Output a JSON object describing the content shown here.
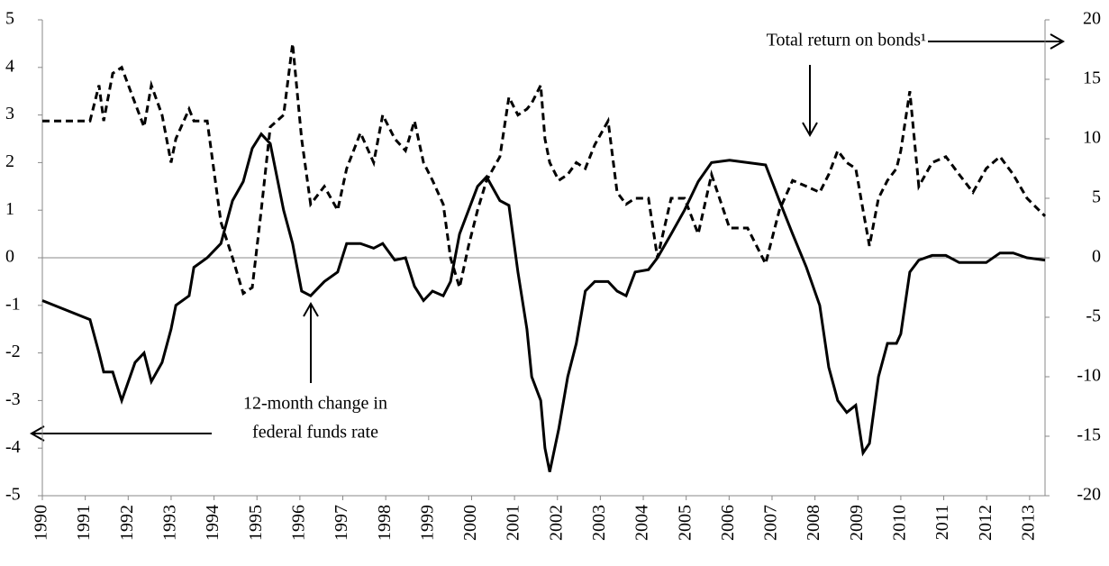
{
  "chart_data": {
    "type": "line",
    "x": [
      1990.0,
      1991.11,
      1991.32,
      1991.43,
      1991.64,
      1991.85,
      1992.16,
      1992.37,
      1992.54,
      1992.79,
      1993.0,
      1993.11,
      1993.42,
      1993.53,
      1993.84,
      1994.16,
      1994.43,
      1994.68,
      1994.89,
      1995.1,
      1995.31,
      1995.62,
      1995.83,
      1996.04,
      1996.25,
      1996.57,
      1996.88,
      1997.09,
      1997.41,
      1997.72,
      1997.93,
      1998.21,
      1998.46,
      1998.67,
      1998.88,
      1999.09,
      1999.34,
      1999.51,
      1999.72,
      1999.93,
      2000.14,
      2000.35,
      2000.66,
      2000.87,
      2001.08,
      2001.29,
      2001.4,
      2001.61,
      2001.71,
      2001.82,
      2002.03,
      2002.24,
      2002.44,
      2002.65,
      2002.87,
      2003.18,
      2003.39,
      2003.6,
      2003.81,
      2004.12,
      2004.33,
      2004.65,
      2004.96,
      2005.28,
      2005.59,
      2006.01,
      2006.43,
      2006.85,
      2007.17,
      2007.48,
      2007.8,
      2008.11,
      2008.32,
      2008.53,
      2008.74,
      2008.95,
      2009.12,
      2009.27,
      2009.48,
      2009.69,
      2009.9,
      2010.0,
      2010.21,
      2010.42,
      2010.73,
      2011.05,
      2011.36,
      2011.68,
      2011.99,
      2012.31,
      2012.62,
      2012.94,
      2013.36
    ],
    "series": [
      {
        "name": "12-month change in federal funds rate",
        "color": "#000000",
        "line_style": "solid",
        "axis": "y",
        "values": [
          -0.9,
          -1.3,
          -2.0,
          -2.4,
          -2.4,
          -3.0,
          -2.2,
          -2.0,
          -2.6,
          -2.2,
          -1.5,
          -1.0,
          -0.8,
          -0.2,
          0.0,
          0.3,
          1.2,
          1.6,
          2.3,
          2.6,
          2.4,
          1.0,
          0.3,
          -0.7,
          -0.8,
          -0.5,
          -0.3,
          0.3,
          0.3,
          0.2,
          0.3,
          -0.05,
          0.0,
          -0.6,
          -0.9,
          -0.7,
          -0.8,
          -0.5,
          0.5,
          1.0,
          1.5,
          1.7,
          1.2,
          1.1,
          -0.3,
          -1.5,
          -2.5,
          -3.0,
          -4.0,
          -4.5,
          -3.6,
          -2.5,
          -1.8,
          -0.7,
          -0.5,
          -0.5,
          -0.7,
          -0.8,
          -0.3,
          -0.25,
          0.0,
          0.5,
          1.0,
          1.6,
          2.0,
          2.05,
          2.0,
          1.95,
          1.2,
          0.5,
          -0.2,
          -1.0,
          -2.3,
          -3.0,
          -3.25,
          -3.1,
          -4.1,
          -3.9,
          -2.5,
          -1.8,
          -1.8,
          -1.6,
          -0.3,
          -0.05,
          0.05,
          0.05,
          -0.1,
          -0.1,
          -0.1,
          0.1,
          0.1,
          0.0,
          -0.05
        ]
      },
      {
        "name": "Total return on bonds¹",
        "color": "#000000",
        "line_style": "dashed",
        "axis": "y2",
        "values": [
          11.5,
          11.5,
          14.5,
          11.5,
          15.5,
          16,
          13,
          11,
          14.5,
          12,
          8,
          10,
          12.5,
          11.5,
          11.5,
          3,
          0,
          -3,
          -2.5,
          4,
          11,
          12,
          18,
          10,
          4.5,
          6,
          4,
          7.5,
          10.5,
          8,
          12,
          10,
          9,
          11.5,
          8,
          6.5,
          4.5,
          0,
          -2.5,
          1,
          4,
          6.5,
          8.5,
          13.5,
          12,
          12.5,
          13,
          14.5,
          10,
          8,
          6.5,
          7,
          8,
          7.5,
          9.5,
          11.5,
          5.5,
          4.5,
          5,
          5,
          0,
          5,
          5,
          2,
          7,
          2.5,
          2.5,
          -0.5,
          4,
          6.5,
          6,
          5.5,
          7,
          9,
          8,
          7.5,
          4,
          1,
          5,
          6.5,
          7.5,
          9,
          14,
          6,
          8,
          8.5,
          7,
          5.5,
          7.5,
          8.5,
          7,
          5,
          3.5
        ]
      }
    ],
    "xlim": [
      1990,
      2013.36
    ],
    "xticks": [
      1990,
      1991,
      1992,
      1993,
      1994,
      1995,
      1996,
      1997,
      1998,
      1999,
      2000,
      2001,
      2002,
      2003,
      2004,
      2005,
      2006,
      2007,
      2008,
      2009,
      2010,
      2011,
      2012,
      2013
    ],
    "ylim": [
      -5,
      5
    ],
    "yticks": [
      -5,
      -4,
      -3,
      -2,
      -1,
      0,
      1,
      2,
      3,
      4,
      5
    ],
    "y2lim": [
      -20,
      20
    ],
    "y2ticks": [
      -20,
      -15,
      -10,
      -5,
      0,
      5,
      10,
      15,
      20
    ],
    "annotations": [
      "Total return on bonds¹",
      "12-month change in",
      "federal funds rate"
    ]
  }
}
